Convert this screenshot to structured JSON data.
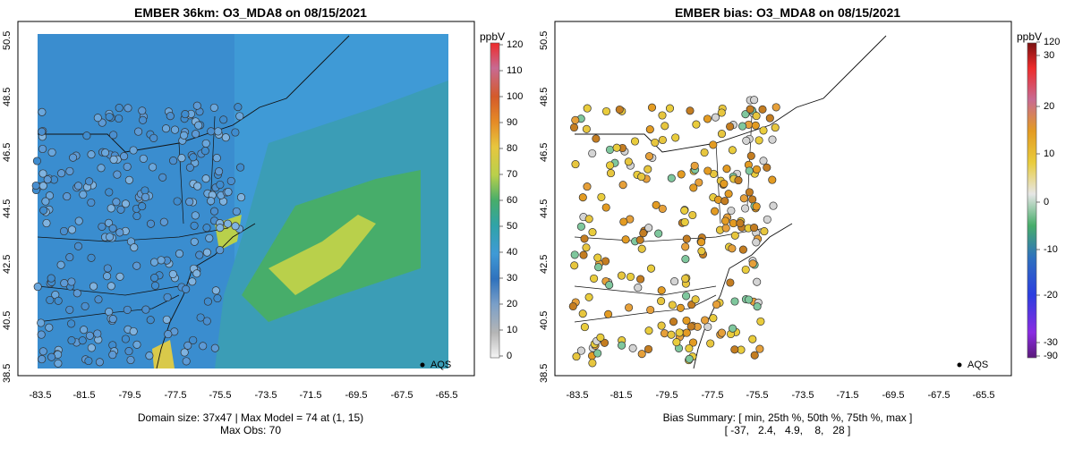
{
  "left": {
    "title": "EMBER 36km: O3_MDA8 on 08/15/2021",
    "y_ticks": [
      "50.5",
      "48.5",
      "46.5",
      "44.5",
      "42.5",
      "40.5",
      "38.5"
    ],
    "x_ticks": [
      "-83.5",
      "-81.5",
      "-79.5",
      "-77.5",
      "-75.5",
      "-73.5",
      "-71.5",
      "-69.5",
      "-67.5",
      "-65.5"
    ],
    "caption_line1": "Domain size: 37x47 | Max Model = 74 at (1, 15)",
    "caption_line2": "Max Obs: 70",
    "legend_label": "AQS",
    "colorbar": {
      "unit": "ppbV",
      "labels": [
        "120",
        "110",
        "100",
        "90",
        "80",
        "70",
        "60",
        "50",
        "40",
        "30",
        "20",
        "10",
        "0"
      ],
      "range": [
        0,
        120
      ]
    }
  },
  "right": {
    "title": "EMBER bias: O3_MDA8 on 08/15/2021",
    "y_ticks": [
      "50.5",
      "48.5",
      "46.5",
      "44.5",
      "42.5",
      "40.5",
      "38.5"
    ],
    "x_ticks": [
      "-83.5",
      "-81.5",
      "-79.5",
      "-77.5",
      "-75.5",
      "-73.5",
      "-71.5",
      "-69.5",
      "-67.5",
      "-65.5"
    ],
    "caption_line1": "Bias Summary: [ min, 25th %, 50th %, 75th %, max ]",
    "caption_line2": "[ -37,   2.4,   4.9,    8,   28 ]",
    "legend_label": "AQS",
    "colorbar": {
      "unit": "ppbV",
      "labels": [
        "120",
        "30",
        "20",
        "10",
        "0",
        "-10",
        "-20",
        "-30",
        "-90"
      ]
    }
  },
  "colors": {
    "ocean_blue": "#3f9ad6",
    "deep_blue": "#2f72bd",
    "green": "#47ad6a",
    "yellow_green": "#b9d04b",
    "bias_orange": "#e39b22",
    "bias_yellow": "#e9cc3c"
  }
}
